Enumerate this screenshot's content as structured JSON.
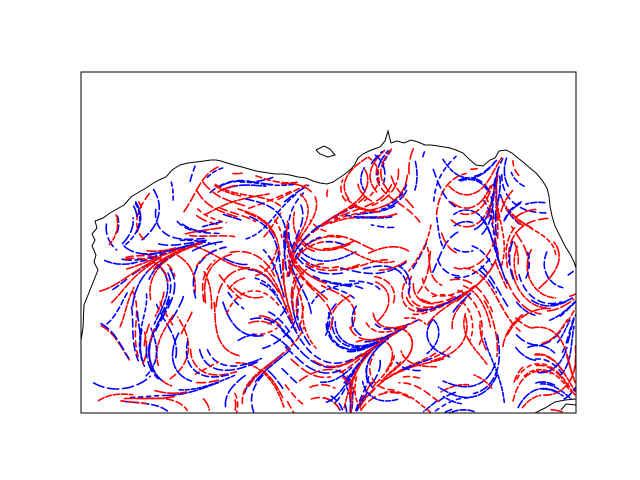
{
  "map": {
    "colors": {
      "background": "#ffffff",
      "frame": "#000000",
      "coastline": "#000000",
      "series_a": "#ff0000",
      "series_b": "#0000ff"
    },
    "series": [
      {
        "color_key": "series_a"
      },
      {
        "color_key": "series_b"
      }
    ]
  }
}
